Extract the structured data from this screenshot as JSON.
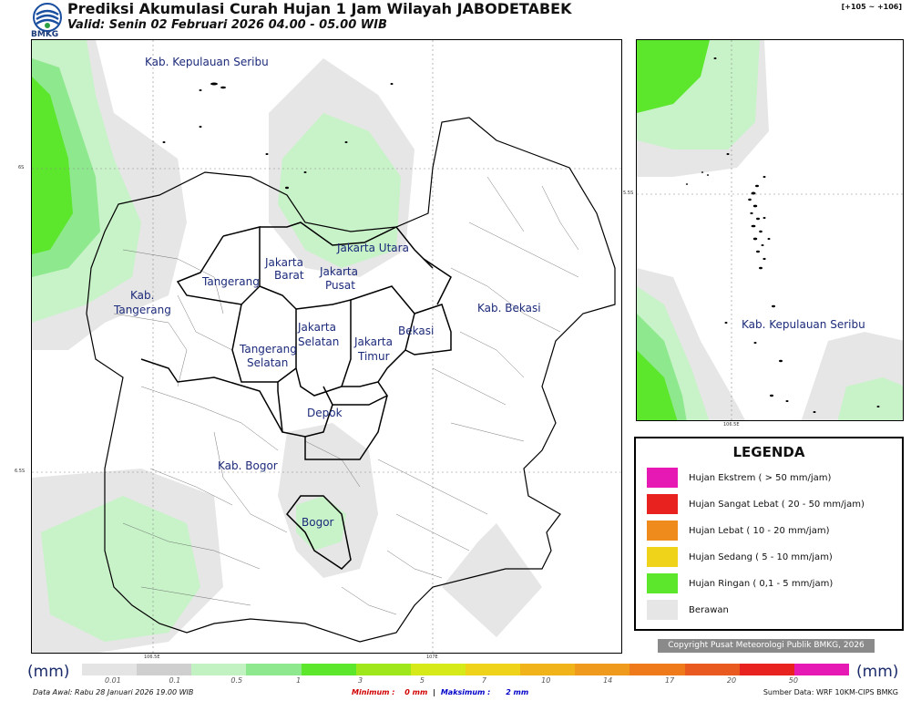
{
  "header": {
    "logo_text": "BMKG",
    "title": "Prediksi Akumulasi Curah Hujan 1 Jam Wilayah JABODETABEK",
    "subtitle": "Valid: Senin 02 Februari 2026 04.00 - 05.00 WIB",
    "coord_range": "[+105 ~ +106]"
  },
  "main_map": {
    "labels": {
      "kepulauan_seribu": "Kab. Kepulauan Seribu",
      "jakarta_utara": "Jakarta Utara",
      "jakarta_barat_1": "Jakarta",
      "jakarta_barat_2": "Barat",
      "jakarta_pusat_1": "Jakarta",
      "jakarta_pusat_2": "Pusat",
      "tangerang": "Tangerang",
      "kab_tangerang_1": "Kab.",
      "kab_tangerang_2": "Tangerang",
      "jakarta_selatan_1": "Jakarta",
      "jakarta_selatan_2": "Selatan",
      "jakarta_timur_1": "Jakarta",
      "jakarta_timur_2": "Timur",
      "bekasi": "Bekasi",
      "kab_bekasi": "Kab. Bekasi",
      "tangerang_selatan_1": "Tangerang",
      "tangerang_selatan_2": "Selatan",
      "depok": "Depok",
      "kab_bogor": "Kab. Bogor",
      "bogor": "Bogor"
    },
    "lat_ticks": [
      "6S",
      "6.5S"
    ],
    "lon_ticks": [
      "106.5E",
      "107E"
    ]
  },
  "inset_map": {
    "label": "Kab. Kepulauan Seribu",
    "lat_tick": "5.5S",
    "lon_tick": "106.5E"
  },
  "legend": {
    "title": "LEGENDA",
    "items": [
      {
        "label": "Hujan Ekstrem ( > 50 mm/jam)",
        "color": "#e619b4"
      },
      {
        "label": "Hujan Sangat Lebat ( 20 - 50 mm/jam)",
        "color": "#e8231f"
      },
      {
        "label": "Hujan Lebat ( 10 - 20 mm/jam)",
        "color": "#ef8a1c"
      },
      {
        "label": "Hujan Sedang ( 5 - 10 mm/jam)",
        "color": "#efd21a"
      },
      {
        "label": "Hujan Ringan ( 0,1 - 5 mm/jam)",
        "color": "#5ce62c"
      },
      {
        "label": "Berawan",
        "color": "#e6e6e6"
      }
    ]
  },
  "copyright": "Copyright Pusat Meteorologi Publik BMKG, 2026",
  "colorbar": {
    "unit_left": "(mm)",
    "unit_right": "(mm)",
    "colors": [
      "#e4e4e4",
      "#cfcfcf",
      "#c2f2c2",
      "#8ee88e",
      "#5ce62c",
      "#9fe61a",
      "#d6ea1a",
      "#efd21a",
      "#f0b41a",
      "#ef9a1c",
      "#ef7a1c",
      "#e85a1f",
      "#e8231f",
      "#e619b4"
    ],
    "ticks": [
      "0.01",
      "0.1",
      "0.5",
      "1",
      "3",
      "5",
      "7",
      "10",
      "14",
      "17",
      "20",
      "50"
    ]
  },
  "footer": {
    "data_awal": "Data Awal: Rabu 28 Januari 2026 19.00 WIB",
    "minimum_label": "Minimum :",
    "minimum_value": "0 mm",
    "separator": "|",
    "maksimum_label": "Maksimum :",
    "maksimum_value": "2 mm",
    "sumber": "Sumber Data: WRF 10KM-CIPS BMKG"
  },
  "colors": {
    "cloud": "#e6e6e6",
    "light_rain_pale": "#c8f2c8",
    "light_rain_mid": "#8ee88e",
    "light_rain_strong": "#5ce62c",
    "label_text": "#1c2a7a"
  }
}
